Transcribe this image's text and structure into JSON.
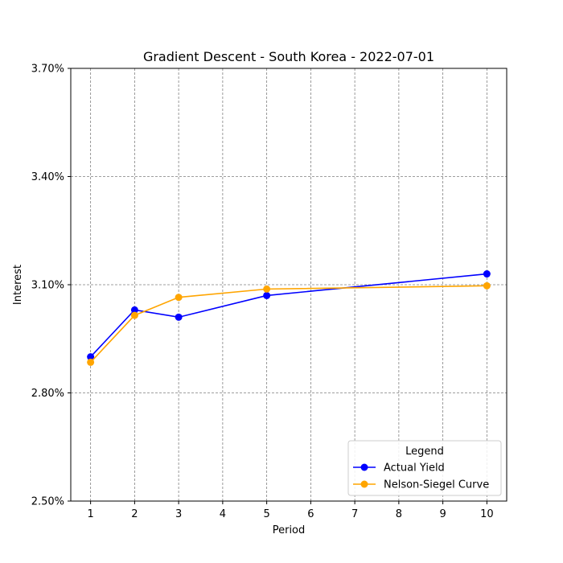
{
  "chart_data": {
    "type": "line",
    "title": "Gradient Descent - South Korea - 2022-07-01",
    "xlabel": "Period",
    "ylabel": "Interest",
    "xlim": [
      0.55,
      10.45
    ],
    "ylim": [
      2.5,
      3.7
    ],
    "x_ticks": [
      1,
      2,
      3,
      4,
      5,
      6,
      7,
      8,
      9,
      10
    ],
    "x_tick_labels": [
      "1",
      "2",
      "3",
      "4",
      "5",
      "6",
      "7",
      "8",
      "9",
      "10"
    ],
    "y_ticks": [
      2.5,
      2.8,
      3.1,
      3.4,
      3.7
    ],
    "y_tick_labels": [
      "2.50%",
      "2.80%",
      "3.10%",
      "3.40%",
      "3.70%"
    ],
    "grid": true,
    "legend": {
      "title": "Legend",
      "placement": "bottom-right"
    },
    "series": [
      {
        "name": "Actual Yield",
        "color": "#0000ff",
        "marker": "circle",
        "x": [
          1,
          2,
          3,
          5,
          10
        ],
        "y": [
          2.9,
          3.03,
          3.01,
          3.07,
          3.13
        ]
      },
      {
        "name": "Nelson-Siegel Curve",
        "color": "#ffa500",
        "marker": "circle",
        "x": [
          1,
          2,
          3,
          5,
          10
        ],
        "y": [
          2.885,
          3.015,
          3.065,
          3.088,
          3.097
        ]
      }
    ]
  }
}
